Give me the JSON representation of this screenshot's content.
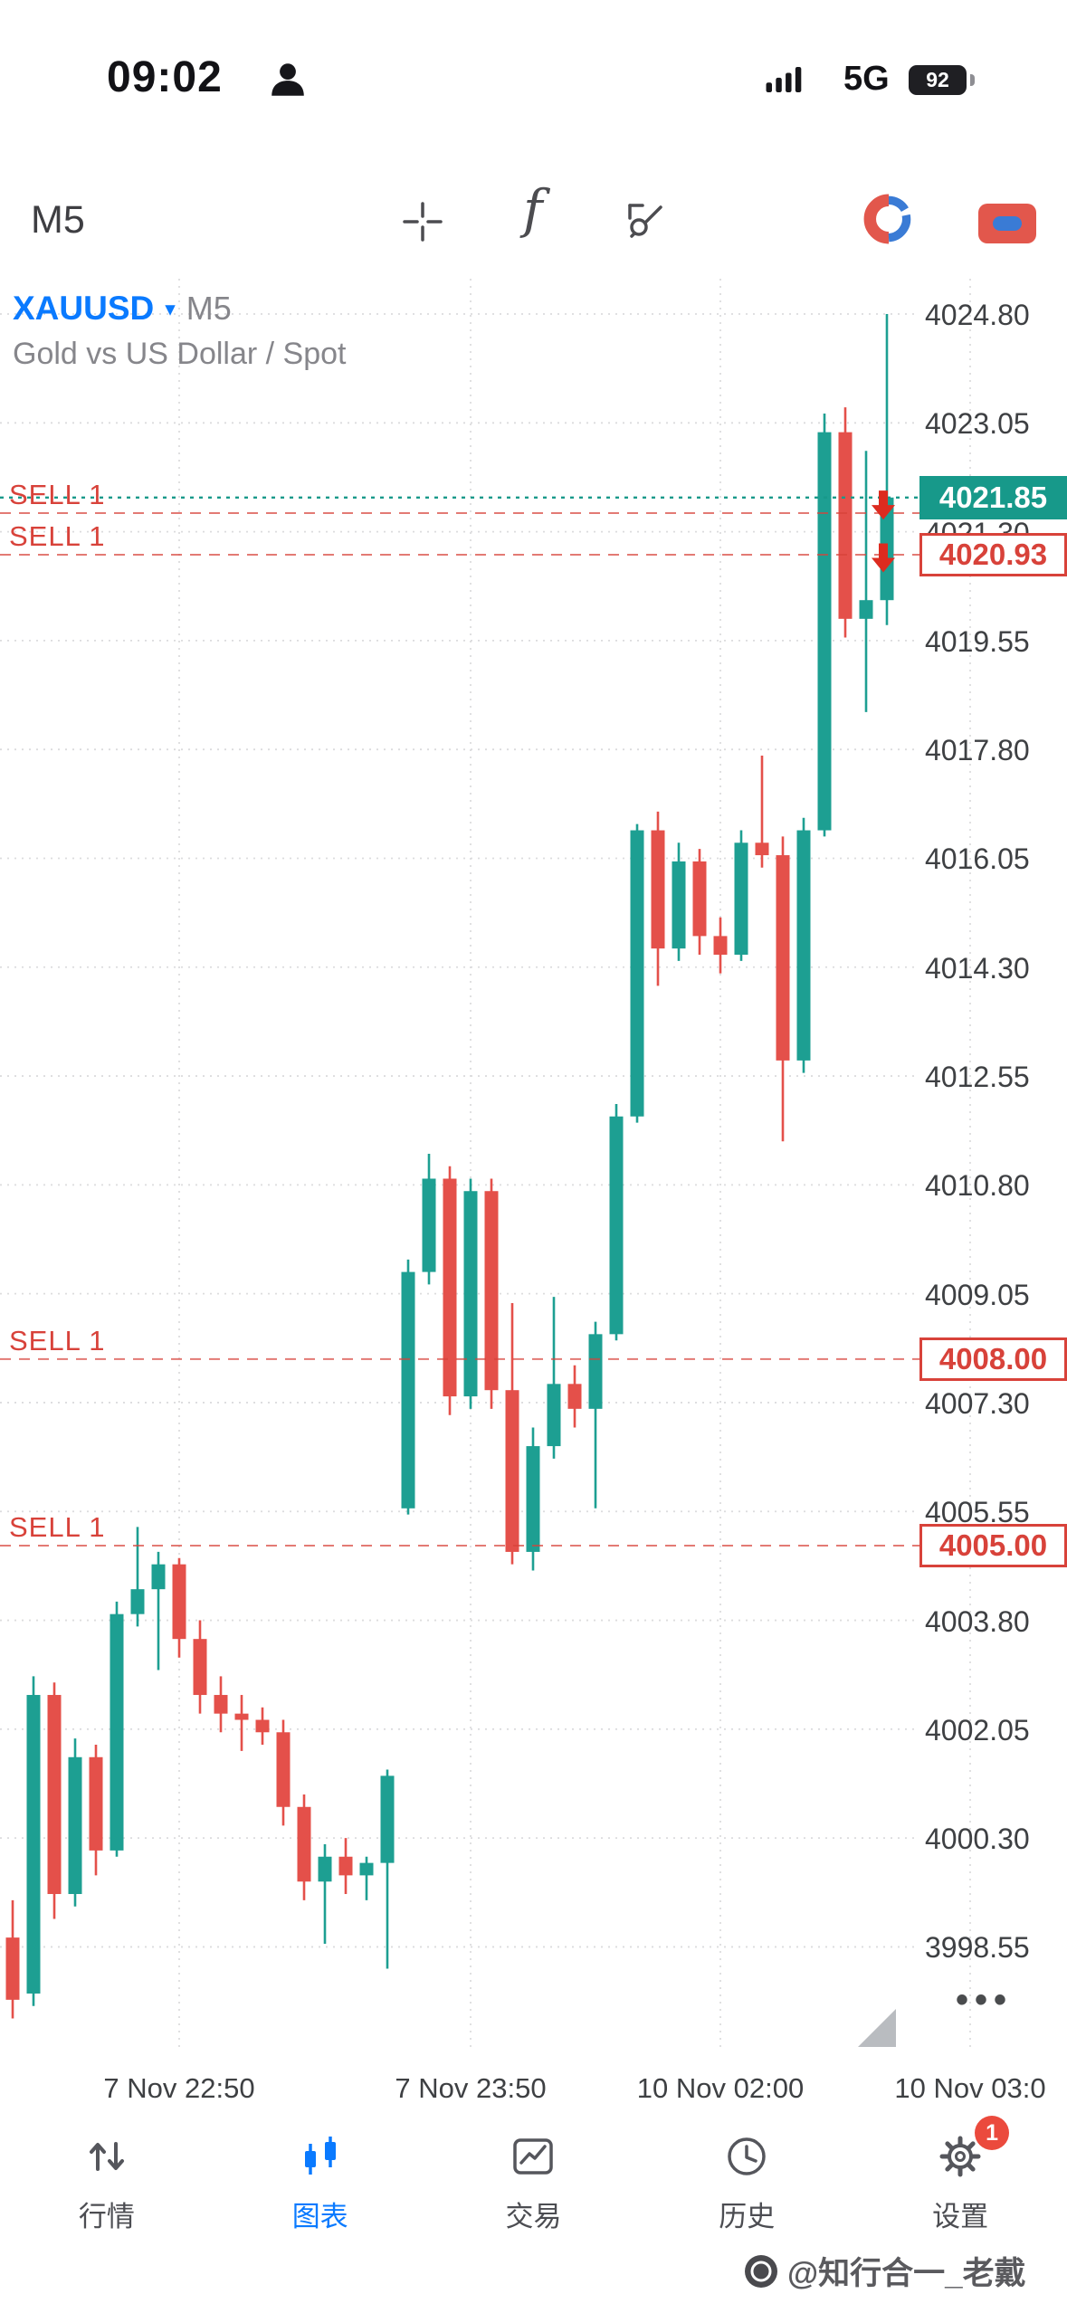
{
  "status_bar": {
    "time": "09:02",
    "network": "5G",
    "battery_percent": "92"
  },
  "toolbar": {
    "timeframe": "M5"
  },
  "chart": {
    "symbol": "XAUUSD",
    "timeframe": "M5",
    "description": "Gold vs US Dollar / Spot",
    "more_label": "•••"
  },
  "chart_data": {
    "type": "candlestick",
    "title": "XAUUSD M5 — Gold vs US Dollar / Spot",
    "grid": true,
    "ylim": [
      3996.8,
      4025.6
    ],
    "y_ticks": [
      4024.8,
      4023.05,
      4021.3,
      4019.55,
      4017.8,
      4016.05,
      4014.3,
      4012.55,
      4010.8,
      4009.05,
      4007.3,
      4005.55,
      4003.8,
      4002.05,
      4000.3,
      3998.55
    ],
    "x_ticks": [
      {
        "label": "7 Nov 22:50",
        "candle_index": 8
      },
      {
        "label": "7 Nov 23:50",
        "candle_index": 22
      },
      {
        "label": "10 Nov 02:00",
        "candle_index": 34
      },
      {
        "label": "10 Nov 03:0",
        "candle_index": 46
      }
    ],
    "candles": [
      [
        3998.7,
        3999.3,
        3997.4,
        3997.7
      ],
      [
        3997.8,
        4002.9,
        3997.6,
        4002.6
      ],
      [
        4002.6,
        4002.8,
        3999.0,
        3999.4
      ],
      [
        3999.4,
        4001.9,
        3999.2,
        4001.6
      ],
      [
        4001.6,
        4001.8,
        3999.7,
        4000.1
      ],
      [
        4000.1,
        4004.1,
        4000.0,
        4003.9
      ],
      [
        4003.9,
        4005.3,
        4003.7,
        4004.3
      ],
      [
        4004.3,
        4004.9,
        4003.0,
        4004.7
      ],
      [
        4004.7,
        4004.8,
        4003.2,
        4003.5
      ],
      [
        4003.5,
        4003.8,
        4002.3,
        4002.6
      ],
      [
        4002.6,
        4002.9,
        4002.0,
        4002.3
      ],
      [
        4002.3,
        4002.6,
        4001.7,
        4002.2
      ],
      [
        4002.2,
        4002.4,
        4001.8,
        4002.0
      ],
      [
        4002.0,
        4002.2,
        4000.5,
        4000.8
      ],
      [
        4000.8,
        4001.0,
        3999.3,
        3999.6
      ],
      [
        3999.6,
        4000.2,
        3998.6,
        4000.0
      ],
      [
        4000.0,
        4000.3,
        3999.4,
        3999.7
      ],
      [
        3999.7,
        4000.0,
        3999.3,
        3999.9
      ],
      [
        3999.9,
        4001.4,
        3998.2,
        4001.3
      ],
      [
        4005.6,
        4009.6,
        4005.5,
        4009.4
      ],
      [
        4009.4,
        4011.3,
        4009.2,
        4010.9
      ],
      [
        4010.9,
        4011.1,
        4007.1,
        4007.4
      ],
      [
        4007.4,
        4010.9,
        4007.2,
        4010.7
      ],
      [
        4010.7,
        4010.9,
        4007.2,
        4007.5
      ],
      [
        4007.5,
        4008.9,
        4004.7,
        4004.9
      ],
      [
        4004.9,
        4006.9,
        4004.6,
        4006.6
      ],
      [
        4006.6,
        4009.0,
        4006.4,
        4007.6
      ],
      [
        4007.6,
        4007.9,
        4006.9,
        4007.2
      ],
      [
        4007.2,
        4008.6,
        4005.6,
        4008.4
      ],
      [
        4008.4,
        4012.1,
        4008.3,
        4011.9
      ],
      [
        4011.9,
        4016.6,
        4011.8,
        4016.5
      ],
      [
        4016.5,
        4016.8,
        4014.0,
        4014.6
      ],
      [
        4014.6,
        4016.3,
        4014.4,
        4016.0
      ],
      [
        4016.0,
        4016.2,
        4014.5,
        4014.8
      ],
      [
        4014.8,
        4015.1,
        4014.2,
        4014.5
      ],
      [
        4014.5,
        4016.5,
        4014.4,
        4016.3
      ],
      [
        4016.3,
        4017.7,
        4015.9,
        4016.1
      ],
      [
        4016.1,
        4016.4,
        4011.5,
        4012.8
      ],
      [
        4012.8,
        4016.7,
        4012.6,
        4016.5
      ],
      [
        4016.5,
        4023.2,
        4016.4,
        4022.9
      ],
      [
        4022.9,
        4023.3,
        4019.6,
        4019.9
      ],
      [
        4019.9,
        4022.6,
        4018.4,
        4020.2
      ],
      [
        4020.2,
        4024.8,
        4019.8,
        4021.85
      ]
    ],
    "current_price": 4021.85,
    "levels": [
      {
        "price": 4021.85,
        "kind": "current",
        "tag": "4021.85"
      },
      {
        "price": 4021.6,
        "kind": "sell",
        "label": "SELL 1"
      },
      {
        "price": 4020.93,
        "kind": "sell",
        "label": "SELL 1",
        "tag": "4020.93"
      },
      {
        "price": 4008.0,
        "kind": "sell",
        "label": "SELL 1",
        "tag": "4008.00"
      },
      {
        "price": 4005.0,
        "kind": "sell",
        "label": "SELL 1",
        "tag": "4005.00"
      }
    ],
    "arrows": [
      {
        "price": 4021.7,
        "direction": "down"
      },
      {
        "price": 4020.85,
        "direction": "down"
      }
    ]
  },
  "colors": {
    "bull": "#1d9f92",
    "bear": "#e4504a",
    "sell_line": "#d8423a",
    "current_line": "#17998a",
    "arrow": "#dd2b1f",
    "grid": "#dcdcde",
    "accent_blue": "#0a7aff"
  },
  "nav": {
    "items": [
      {
        "label": "行情",
        "icon": "arrows-up-down"
      },
      {
        "label": "图表",
        "icon": "candles",
        "active": true
      },
      {
        "label": "交易",
        "icon": "trade-chart"
      },
      {
        "label": "历史",
        "icon": "history-clock"
      },
      {
        "label": "设置",
        "icon": "gear",
        "badge": "1"
      }
    ]
  },
  "watermark": {
    "text": "@知行合一_老戴"
  }
}
